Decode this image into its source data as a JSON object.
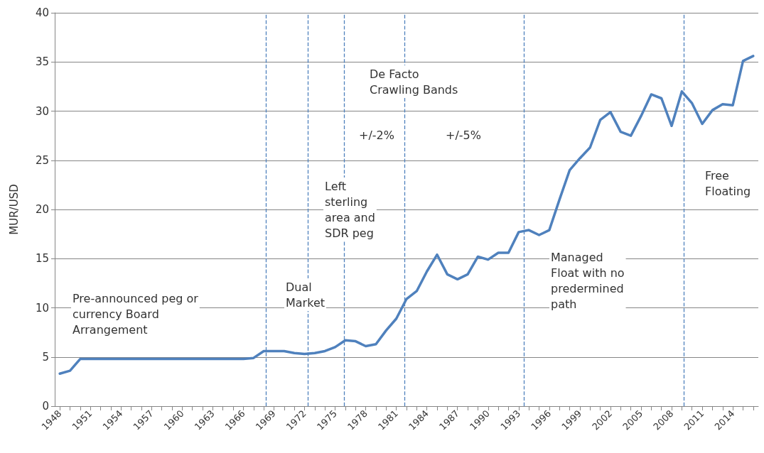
{
  "chart_data": {
    "type": "line",
    "ylabel": "MUR/USD",
    "x": [
      1948,
      1949,
      1950,
      1951,
      1952,
      1953,
      1954,
      1955,
      1956,
      1957,
      1958,
      1959,
      1960,
      1961,
      1962,
      1963,
      1964,
      1965,
      1966,
      1967,
      1968,
      1969,
      1970,
      1971,
      1972,
      1973,
      1974,
      1975,
      1976,
      1977,
      1978,
      1979,
      1980,
      1981,
      1982,
      1983,
      1984,
      1985,
      1986,
      1987,
      1988,
      1989,
      1990,
      1991,
      1992,
      1993,
      1994,
      1995,
      1996,
      1997,
      1998,
      1999,
      2000,
      2001,
      2002,
      2003,
      2004,
      2005,
      2006,
      2007,
      2008,
      2009,
      2010,
      2011,
      2012,
      2013,
      2014,
      2015,
      2016
    ],
    "series": [
      {
        "color": "#4f81bd",
        "values": [
          3.3,
          3.6,
          4.8,
          4.8,
          4.8,
          4.8,
          4.8,
          4.8,
          4.8,
          4.8,
          4.8,
          4.8,
          4.8,
          4.8,
          4.8,
          4.8,
          4.8,
          4.8,
          4.8,
          4.9,
          5.6,
          5.6,
          5.6,
          5.4,
          5.3,
          5.4,
          5.6,
          6.0,
          6.7,
          6.6,
          6.1,
          6.3,
          7.7,
          8.9,
          10.9,
          11.7,
          13.7,
          15.4,
          13.4,
          12.9,
          13.4,
          15.2,
          14.9,
          15.6,
          15.6,
          17.7,
          17.9,
          17.4,
          17.9,
          21.0,
          24.0,
          25.2,
          26.3,
          29.1,
          29.9,
          27.9,
          27.5,
          29.5,
          31.7,
          31.3,
          28.5,
          32.0,
          30.8,
          28.7,
          30.1,
          30.7,
          30.6,
          35.1,
          35.6
        ]
      }
    ],
    "xlim": [
      1947.5,
      2016.5
    ],
    "xticks": [
      1948,
      {
        "value": 1949,
        "label": null
      },
      {
        "value": 1950,
        "label": null
      },
      1951,
      {
        "value": 1952,
        "label": null
      },
      {
        "value": 1953,
        "label": null
      },
      1954,
      {
        "value": 1955,
        "label": null
      },
      {
        "value": 1956,
        "label": null
      },
      1957,
      {
        "value": 1958,
        "label": null
      },
      {
        "value": 1959,
        "label": null
      },
      1960,
      {
        "value": 1961,
        "label": null
      },
      {
        "value": 1962,
        "label": null
      },
      1963,
      {
        "value": 1964,
        "label": null
      },
      {
        "value": 1965,
        "label": null
      },
      1966,
      {
        "value": 1967,
        "label": null
      },
      {
        "value": 1968,
        "label": null
      },
      1969,
      {
        "value": 1970,
        "label": null
      },
      {
        "value": 1971,
        "label": null
      },
      1972,
      {
        "value": 1973,
        "label": null
      },
      {
        "value": 1974,
        "label": null
      },
      1975,
      {
        "value": 1976,
        "label": null
      },
      {
        "value": 1977,
        "label": null
      },
      1978,
      {
        "value": 1979,
        "label": null
      },
      {
        "value": 1980,
        "label": null
      },
      1981,
      {
        "value": 1982,
        "label": null
      },
      {
        "value": 1983,
        "label": null
      },
      1984,
      {
        "value": 1985,
        "label": null
      },
      {
        "value": 1986,
        "label": null
      },
      1987,
      {
        "value": 1988,
        "label": null
      },
      {
        "value": 1989,
        "label": null
      },
      1990,
      {
        "value": 1991,
        "label": null
      },
      {
        "value": 1992,
        "label": null
      },
      1993,
      {
        "value": 1994,
        "label": null
      },
      {
        "value": 1995,
        "label": null
      },
      1996,
      {
        "value": 1997,
        "label": null
      },
      {
        "value": 1998,
        "label": null
      },
      1999,
      {
        "value": 2000,
        "label": null
      },
      {
        "value": 2001,
        "label": null
      },
      2002,
      {
        "value": 2003,
        "label": null
      },
      {
        "value": 2004,
        "label": null
      },
      2005,
      {
        "value": 2006,
        "label": null
      },
      {
        "value": 2007,
        "label": null
      },
      2008,
      {
        "value": 2009,
        "label": null
      },
      {
        "value": 2010,
        "label": null
      },
      2011,
      {
        "value": 2012,
        "label": null
      },
      {
        "value": 2013,
        "label": null
      },
      2014,
      {
        "value": 2015,
        "label": null
      },
      {
        "value": 2016,
        "label": null
      }
    ],
    "ylim": [
      0,
      40
    ],
    "yticks": [
      0,
      5,
      10,
      15,
      20,
      25,
      30,
      35,
      40
    ],
    "grid": "y",
    "marker": "none",
    "line_style": "solid",
    "ref_lines": [
      {
        "axis": "x",
        "value": 1968.2,
        "color": "#4f81bd",
        "line_style": "dashed"
      },
      {
        "axis": "x",
        "value": 1972.3,
        "color": "#4f81bd",
        "line_style": "dashed"
      },
      {
        "axis": "x",
        "value": 1975.9,
        "color": "#4f81bd",
        "line_style": "dashed"
      },
      {
        "axis": "x",
        "value": 1981.8,
        "color": "#4f81bd",
        "line_style": "dashed"
      },
      {
        "axis": "x",
        "value": 1993.5,
        "color": "#4f81bd",
        "line_style": "dashed"
      },
      {
        "axis": "x",
        "value": 2009.2,
        "color": "#4f81bd",
        "line_style": "dashed"
      }
    ],
    "annotations": [
      "Pre-announced peg or\ncurrency Board\nArrangement",
      "Dual\nMarket",
      "Left\nsterling\narea and\nSDR peg",
      "De Facto\nCrawling Bands",
      "+/-2%",
      "+/-5%",
      "Managed\nFloat with no\npredermined\npath",
      "Free\nFloating"
    ]
  }
}
